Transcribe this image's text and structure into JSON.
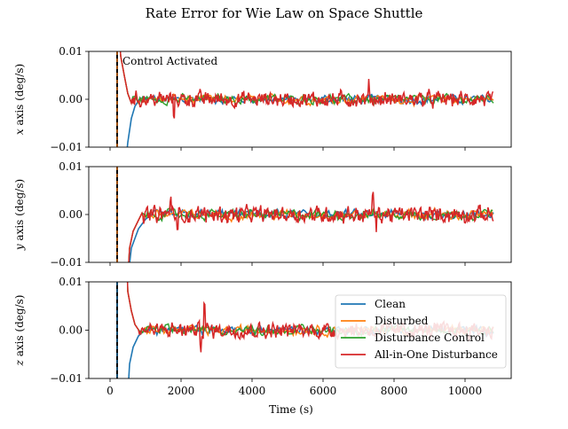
{
  "chart_data": {
    "type": "line",
    "title": "Rate Error for Wie Law on Space Shuttle",
    "xlabel": "Time (s)",
    "xlim": [
      -600,
      11300
    ],
    "xticks": [
      0,
      2000,
      4000,
      6000,
      8000,
      10000
    ],
    "xtick_labels": [
      "0",
      "2000",
      "4000",
      "6000",
      "8000",
      "10000"
    ],
    "activation_time": 200,
    "activation_label": "Control Activated",
    "legend": {
      "placement": "lower-right of bottom panel",
      "entries": [
        "Clean",
        "Disturbed",
        "Disturbance Control",
        "All-in-One Disturbance"
      ]
    },
    "series_colors": {
      "Clean": "#1f77b4",
      "Disturbed": "#ff7f0e",
      "Disturbance Control": "#2ca02c",
      "All-in-One Disturbance": "#d62728"
    },
    "panels": [
      {
        "ylabel_var": "x",
        "ylabel_rest": " axis (deg/s)",
        "ylim": [
          -0.01,
          0.01
        ],
        "yticks": [
          -0.01,
          0.0,
          0.01
        ],
        "ytick_labels": [
          "−0.01",
          "0.00",
          "0.01"
        ],
        "clean_settle": [
          [
            350,
            -0.02
          ],
          [
            500,
            -0.009
          ],
          [
            600,
            -0.004
          ],
          [
            700,
            -0.0015
          ],
          [
            850,
            0.0003
          ]
        ],
        "red_settle": [
          [
            200,
            0.02
          ],
          [
            300,
            0.009
          ],
          [
            400,
            0.005
          ],
          [
            500,
            0.0012
          ],
          [
            600,
            -0.0008
          ]
        ],
        "noise_amp": 0.0012,
        "noise_events": [
          {
            "t": 1800,
            "dy": -0.003
          },
          {
            "t": 7300,
            "dy": 0.0025
          }
        ]
      },
      {
        "ylabel_var": "y",
        "ylabel_rest": " axis (deg/s)",
        "ylim": [
          -0.01,
          0.01
        ],
        "yticks": [
          -0.01,
          0.0,
          0.01
        ],
        "ytick_labels": [
          "−0.01",
          "0.00",
          "0.01"
        ],
        "clean_settle": [
          [
            400,
            -0.02
          ],
          [
            600,
            -0.007
          ],
          [
            800,
            -0.003
          ],
          [
            1000,
            -0.001
          ],
          [
            1200,
            0.0002
          ]
        ],
        "red_settle": [
          [
            450,
            -0.02
          ],
          [
            550,
            -0.007
          ],
          [
            650,
            -0.0035
          ],
          [
            800,
            -0.0012
          ],
          [
            900,
            0.0003
          ]
        ],
        "noise_amp": 0.0013,
        "noise_events": [
          {
            "t": 1700,
            "dy": 0.004
          },
          {
            "t": 1900,
            "dy": -0.004
          },
          {
            "t": 7400,
            "dy": 0.0045
          },
          {
            "t": 7500,
            "dy": -0.003
          }
        ]
      },
      {
        "ylabel_var": "z",
        "ylabel_rest": " axis (deg/s)",
        "ylim": [
          -0.01,
          0.01
        ],
        "yticks": [
          -0.01,
          0.0,
          0.01
        ],
        "ytick_labels": [
          "−0.01",
          "0.00",
          "0.01"
        ],
        "clean_settle": [
          [
            450,
            -0.02
          ],
          [
            550,
            -0.007
          ],
          [
            650,
            -0.0035
          ],
          [
            800,
            -0.0012
          ],
          [
            1000,
            0.0002
          ]
        ],
        "red_settle": [
          [
            450,
            0.02
          ],
          [
            500,
            0.008
          ],
          [
            600,
            0.004
          ],
          [
            700,
            0.0012
          ],
          [
            800,
            0.0001
          ]
        ],
        "noise_amp": 0.0012,
        "noise_events": [
          {
            "t": 2650,
            "dy": 0.006
          },
          {
            "t": 2550,
            "dy": -0.003
          }
        ]
      }
    ]
  }
}
